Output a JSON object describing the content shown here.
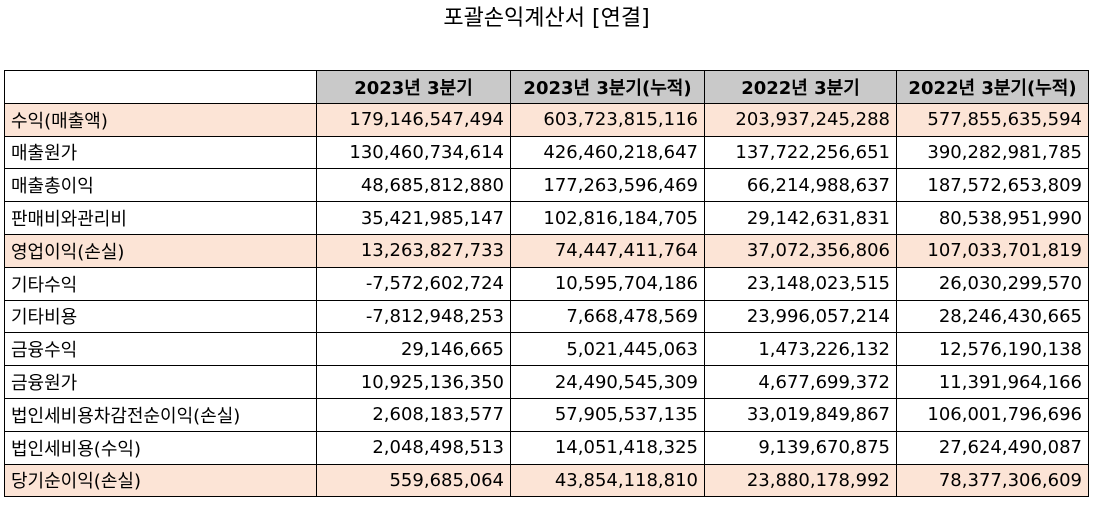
{
  "title": "포괄손익계산서 [연결]",
  "colors": {
    "header_bg": "#c9c9c9",
    "highlight_bg": "#fce4d6"
  },
  "table": {
    "headers": [
      "",
      "2023년 3분기",
      "2023년 3분기(누적)",
      "2022년 3분기",
      "2022년 3분기(누적)"
    ],
    "rows": [
      {
        "label": "수익(매출액)",
        "highlight": true,
        "values": [
          "179,146,547,494",
          "603,723,815,116",
          "203,937,245,288",
          "577,855,635,594"
        ]
      },
      {
        "label": "매출원가",
        "highlight": false,
        "values": [
          "130,460,734,614",
          "426,460,218,647",
          "137,722,256,651",
          "390,282,981,785"
        ]
      },
      {
        "label": "매출총이익",
        "highlight": false,
        "values": [
          "48,685,812,880",
          "177,263,596,469",
          "66,214,988,637",
          "187,572,653,809"
        ]
      },
      {
        "label": "판매비와관리비",
        "highlight": false,
        "values": [
          "35,421,985,147",
          "102,816,184,705",
          "29,142,631,831",
          "80,538,951,990"
        ]
      },
      {
        "label": "영업이익(손실)",
        "highlight": true,
        "values": [
          "13,263,827,733",
          "74,447,411,764",
          "37,072,356,806",
          "107,033,701,819"
        ]
      },
      {
        "label": "기타수익",
        "highlight": false,
        "values": [
          "-7,572,602,724",
          "10,595,704,186",
          "23,148,023,515",
          "26,030,299,570"
        ]
      },
      {
        "label": "기타비용",
        "highlight": false,
        "values": [
          "-7,812,948,253",
          "7,668,478,569",
          "23,996,057,214",
          "28,246,430,665"
        ]
      },
      {
        "label": "금융수익",
        "highlight": false,
        "values": [
          "29,146,665",
          "5,021,445,063",
          "1,473,226,132",
          "12,576,190,138"
        ]
      },
      {
        "label": "금융원가",
        "highlight": false,
        "values": [
          "10,925,136,350",
          "24,490,545,309",
          "4,677,699,372",
          "11,391,964,166"
        ]
      },
      {
        "label": "법인세비용차감전순이익(손실)",
        "highlight": false,
        "values": [
          "2,608,183,577",
          "57,905,537,135",
          "33,019,849,867",
          "106,001,796,696"
        ]
      },
      {
        "label": "법인세비용(수익)",
        "highlight": false,
        "values": [
          "2,048,498,513",
          "14,051,418,325",
          "9,139,670,875",
          "27,624,490,087"
        ]
      },
      {
        "label": "당기순이익(손실)",
        "highlight": true,
        "values": [
          "559,685,064",
          "43,854,118,810",
          "23,880,178,992",
          "78,377,306,609"
        ]
      }
    ]
  }
}
